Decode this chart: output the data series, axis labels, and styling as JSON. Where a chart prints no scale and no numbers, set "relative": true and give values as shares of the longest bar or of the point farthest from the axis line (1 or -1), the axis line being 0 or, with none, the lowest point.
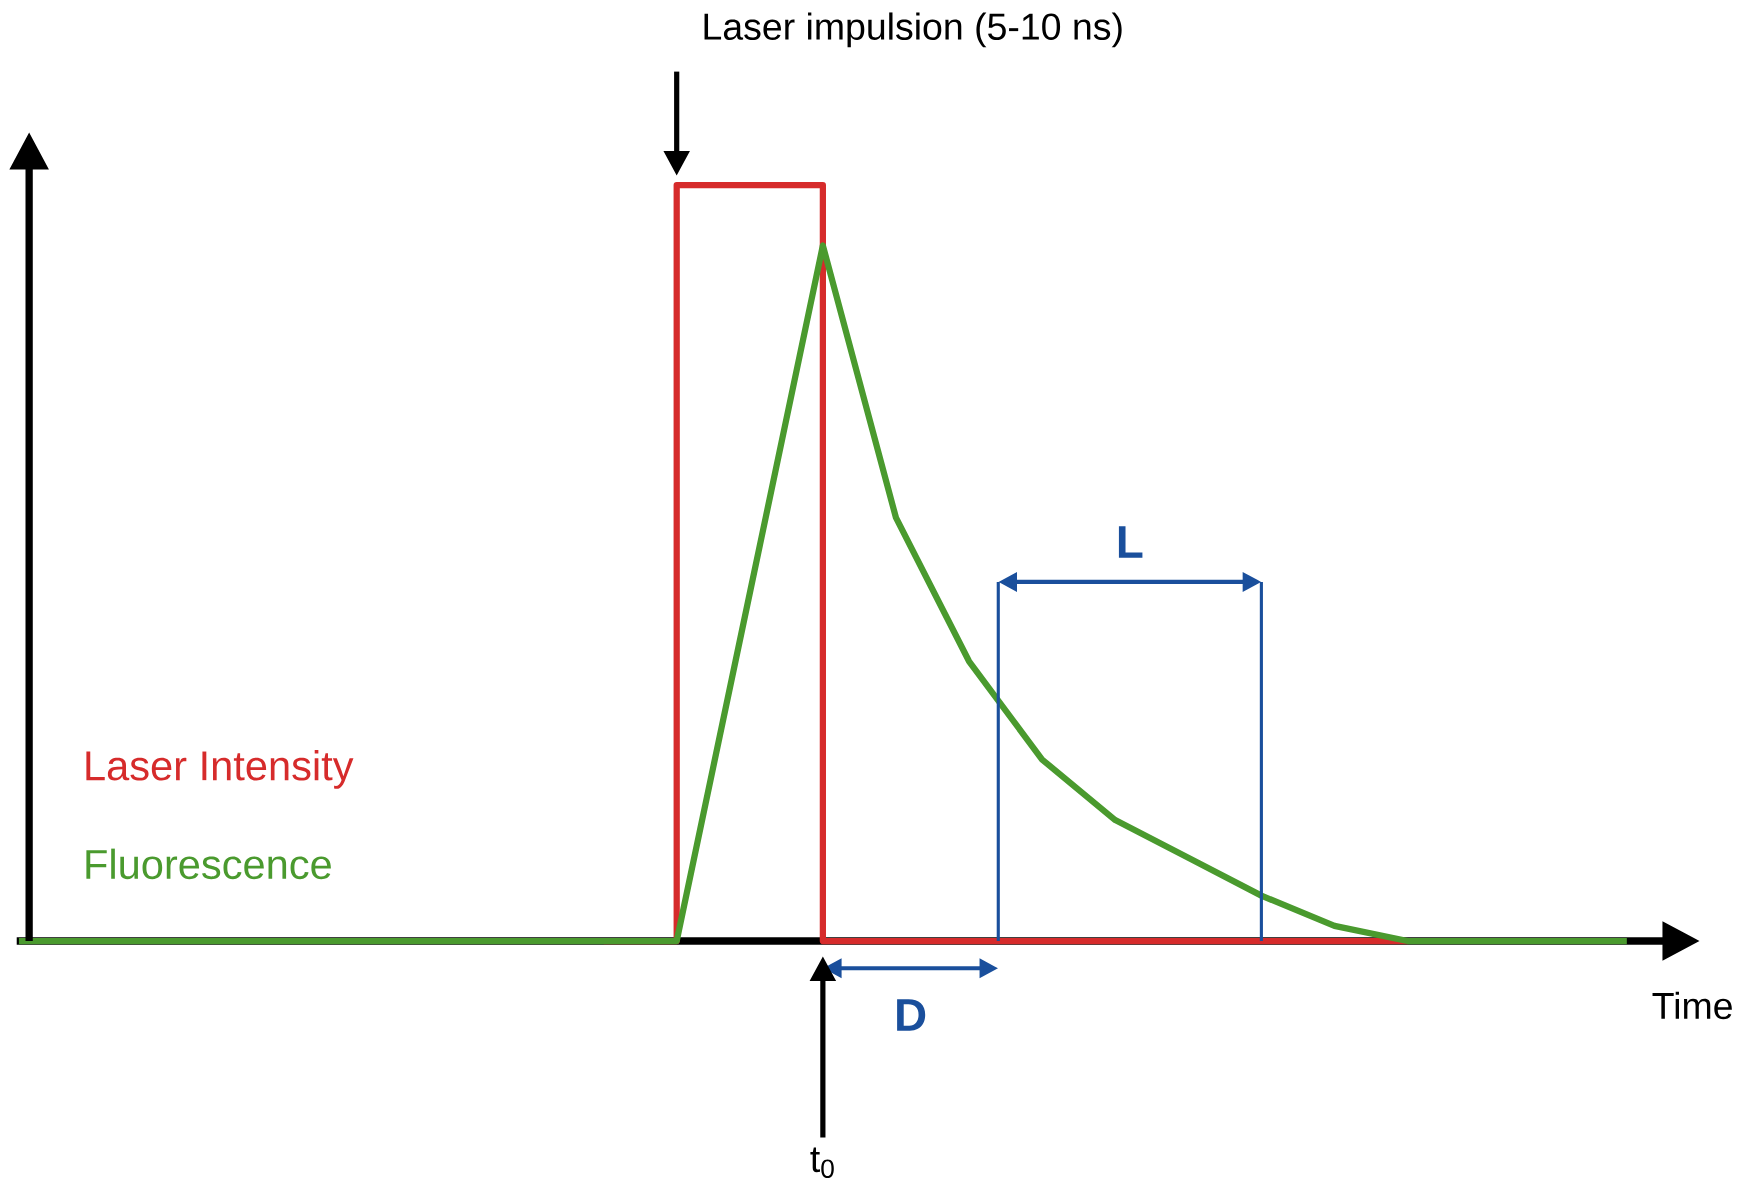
{
  "chart_data": {
    "type": "line",
    "relative": true,
    "xlabel": "Time",
    "categories": [
      null,
      null,
      null,
      null,
      null,
      null,
      null,
      null,
      null,
      null,
      null,
      null,
      null,
      null,
      null,
      null,
      null,
      null,
      null,
      null,
      null,
      null,
      null
    ],
    "series": [
      {
        "name": "Laser Intensity",
        "type": "step",
        "color": "#d62b2b",
        "values": [
          null,
          null,
          null,
          null,
          null,
          null,
          null,
          null,
          0,
          1,
          1,
          0,
          0,
          0,
          0,
          0,
          0,
          0,
          0,
          0,
          null,
          null,
          null
        ]
      },
      {
        "name": "Fluorescence",
        "color": "#4a9a2e",
        "values": [
          0,
          0,
          0,
          0,
          0,
          0,
          0,
          0,
          0,
          0,
          0.46,
          0.92,
          0.56,
          0.37,
          0.24,
          0.16,
          0.11,
          0.06,
          0.02,
          0,
          0,
          0,
          0
        ]
      }
    ],
    "annotations": [
      "Laser impulsion (5-10 ns)",
      "D",
      "t$_{0}$",
      "L"
    ]
  }
}
